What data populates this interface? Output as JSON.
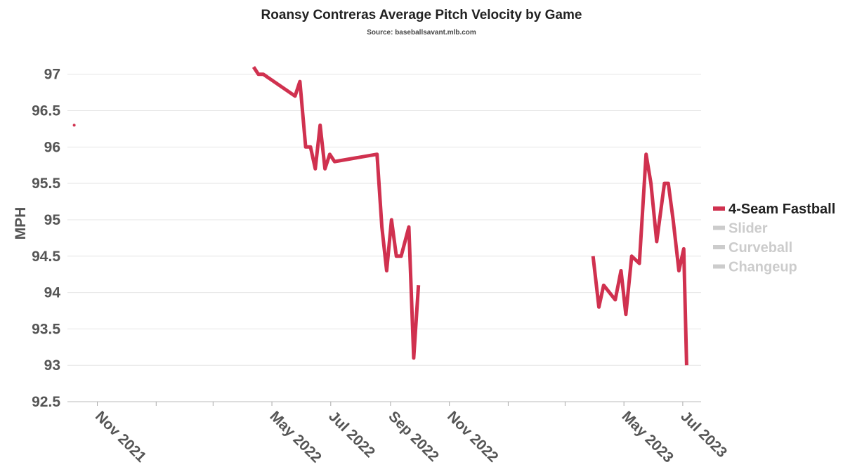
{
  "chart_data": {
    "type": "line",
    "title": "Roansy Contreras Average Pitch Velocity by Game",
    "subtitle": "Source: baseballsavant.mlb.com",
    "ylabel": "MPH",
    "xlabel": "",
    "ylim": [
      92.5,
      97.2
    ],
    "yticks": [
      "92.5",
      "93",
      "93.5",
      "94",
      "94.5",
      "95",
      "95.5",
      "96",
      "96.5",
      "97"
    ],
    "xlim": [
      "2021-10-01",
      "2023-07-20"
    ],
    "xtick_labels": [
      {
        "date": "2021-11-01",
        "label": "Nov 2021"
      },
      {
        "date": "2022-05-01",
        "label": "May 2022"
      },
      {
        "date": "2022-07-01",
        "label": "Jul 2022"
      },
      {
        "date": "2022-09-01",
        "label": "Sep 2022"
      },
      {
        "date": "2022-11-01",
        "label": "Nov 2022"
      },
      {
        "date": "2023-05-01",
        "label": "May 2023"
      },
      {
        "date": "2023-07-01",
        "label": "Jul 2023"
      }
    ],
    "minor_ticks": [
      "2022-01-01",
      "2022-03-01",
      "2023-01-01",
      "2023-03-01"
    ],
    "grid": true,
    "legend_position": "right",
    "series": [
      {
        "name": "4-Seam Fastball",
        "color": "#d0314f",
        "active": true,
        "segments": [
          [
            {
              "x": "2021-10-08",
              "y": 96.3
            }
          ],
          [
            {
              "x": "2022-04-12",
              "y": 97.1
            },
            {
              "x": "2022-04-17",
              "y": 97.0
            },
            {
              "x": "2022-04-22",
              "y": 97.0
            },
            {
              "x": "2022-05-25",
              "y": 96.7
            },
            {
              "x": "2022-05-30",
              "y": 96.9
            },
            {
              "x": "2022-06-05",
              "y": 96.0
            },
            {
              "x": "2022-06-10",
              "y": 96.0
            },
            {
              "x": "2022-06-15",
              "y": 95.7
            },
            {
              "x": "2022-06-20",
              "y": 96.3
            },
            {
              "x": "2022-06-25",
              "y": 95.7
            },
            {
              "x": "2022-06-30",
              "y": 95.9
            },
            {
              "x": "2022-07-05",
              "y": 95.8
            },
            {
              "x": "2022-08-18",
              "y": 95.9
            },
            {
              "x": "2022-08-23",
              "y": 94.9
            },
            {
              "x": "2022-08-28",
              "y": 94.3
            },
            {
              "x": "2022-09-02",
              "y": 95.0
            },
            {
              "x": "2022-09-07",
              "y": 94.5
            },
            {
              "x": "2022-09-12",
              "y": 94.5
            },
            {
              "x": "2022-09-20",
              "y": 94.9
            },
            {
              "x": "2022-09-25",
              "y": 93.1
            },
            {
              "x": "2022-09-30",
              "y": 94.1
            }
          ],
          [
            {
              "x": "2023-03-30",
              "y": 94.5
            },
            {
              "x": "2023-04-05",
              "y": 93.8
            },
            {
              "x": "2023-04-10",
              "y": 94.1
            },
            {
              "x": "2023-04-22",
              "y": 93.9
            },
            {
              "x": "2023-04-28",
              "y": 94.3
            },
            {
              "x": "2023-05-03",
              "y": 93.7
            },
            {
              "x": "2023-05-09",
              "y": 94.5
            },
            {
              "x": "2023-05-17",
              "y": 94.4
            },
            {
              "x": "2023-05-24",
              "y": 95.9
            },
            {
              "x": "2023-05-29",
              "y": 95.5
            },
            {
              "x": "2023-06-04",
              "y": 94.7
            },
            {
              "x": "2023-06-12",
              "y": 95.5
            },
            {
              "x": "2023-06-16",
              "y": 95.5
            },
            {
              "x": "2023-06-21",
              "y": 95.0
            },
            {
              "x": "2023-06-27",
              "y": 94.3
            },
            {
              "x": "2023-07-02",
              "y": 94.6
            },
            {
              "x": "2023-07-05",
              "y": 93.0
            }
          ]
        ]
      },
      {
        "name": "Slider",
        "color": "#cccccc",
        "active": false,
        "segments": []
      },
      {
        "name": "Curveball",
        "color": "#cccccc",
        "active": false,
        "segments": []
      },
      {
        "name": "Changeup",
        "color": "#cccccc",
        "active": false,
        "segments": []
      }
    ]
  }
}
